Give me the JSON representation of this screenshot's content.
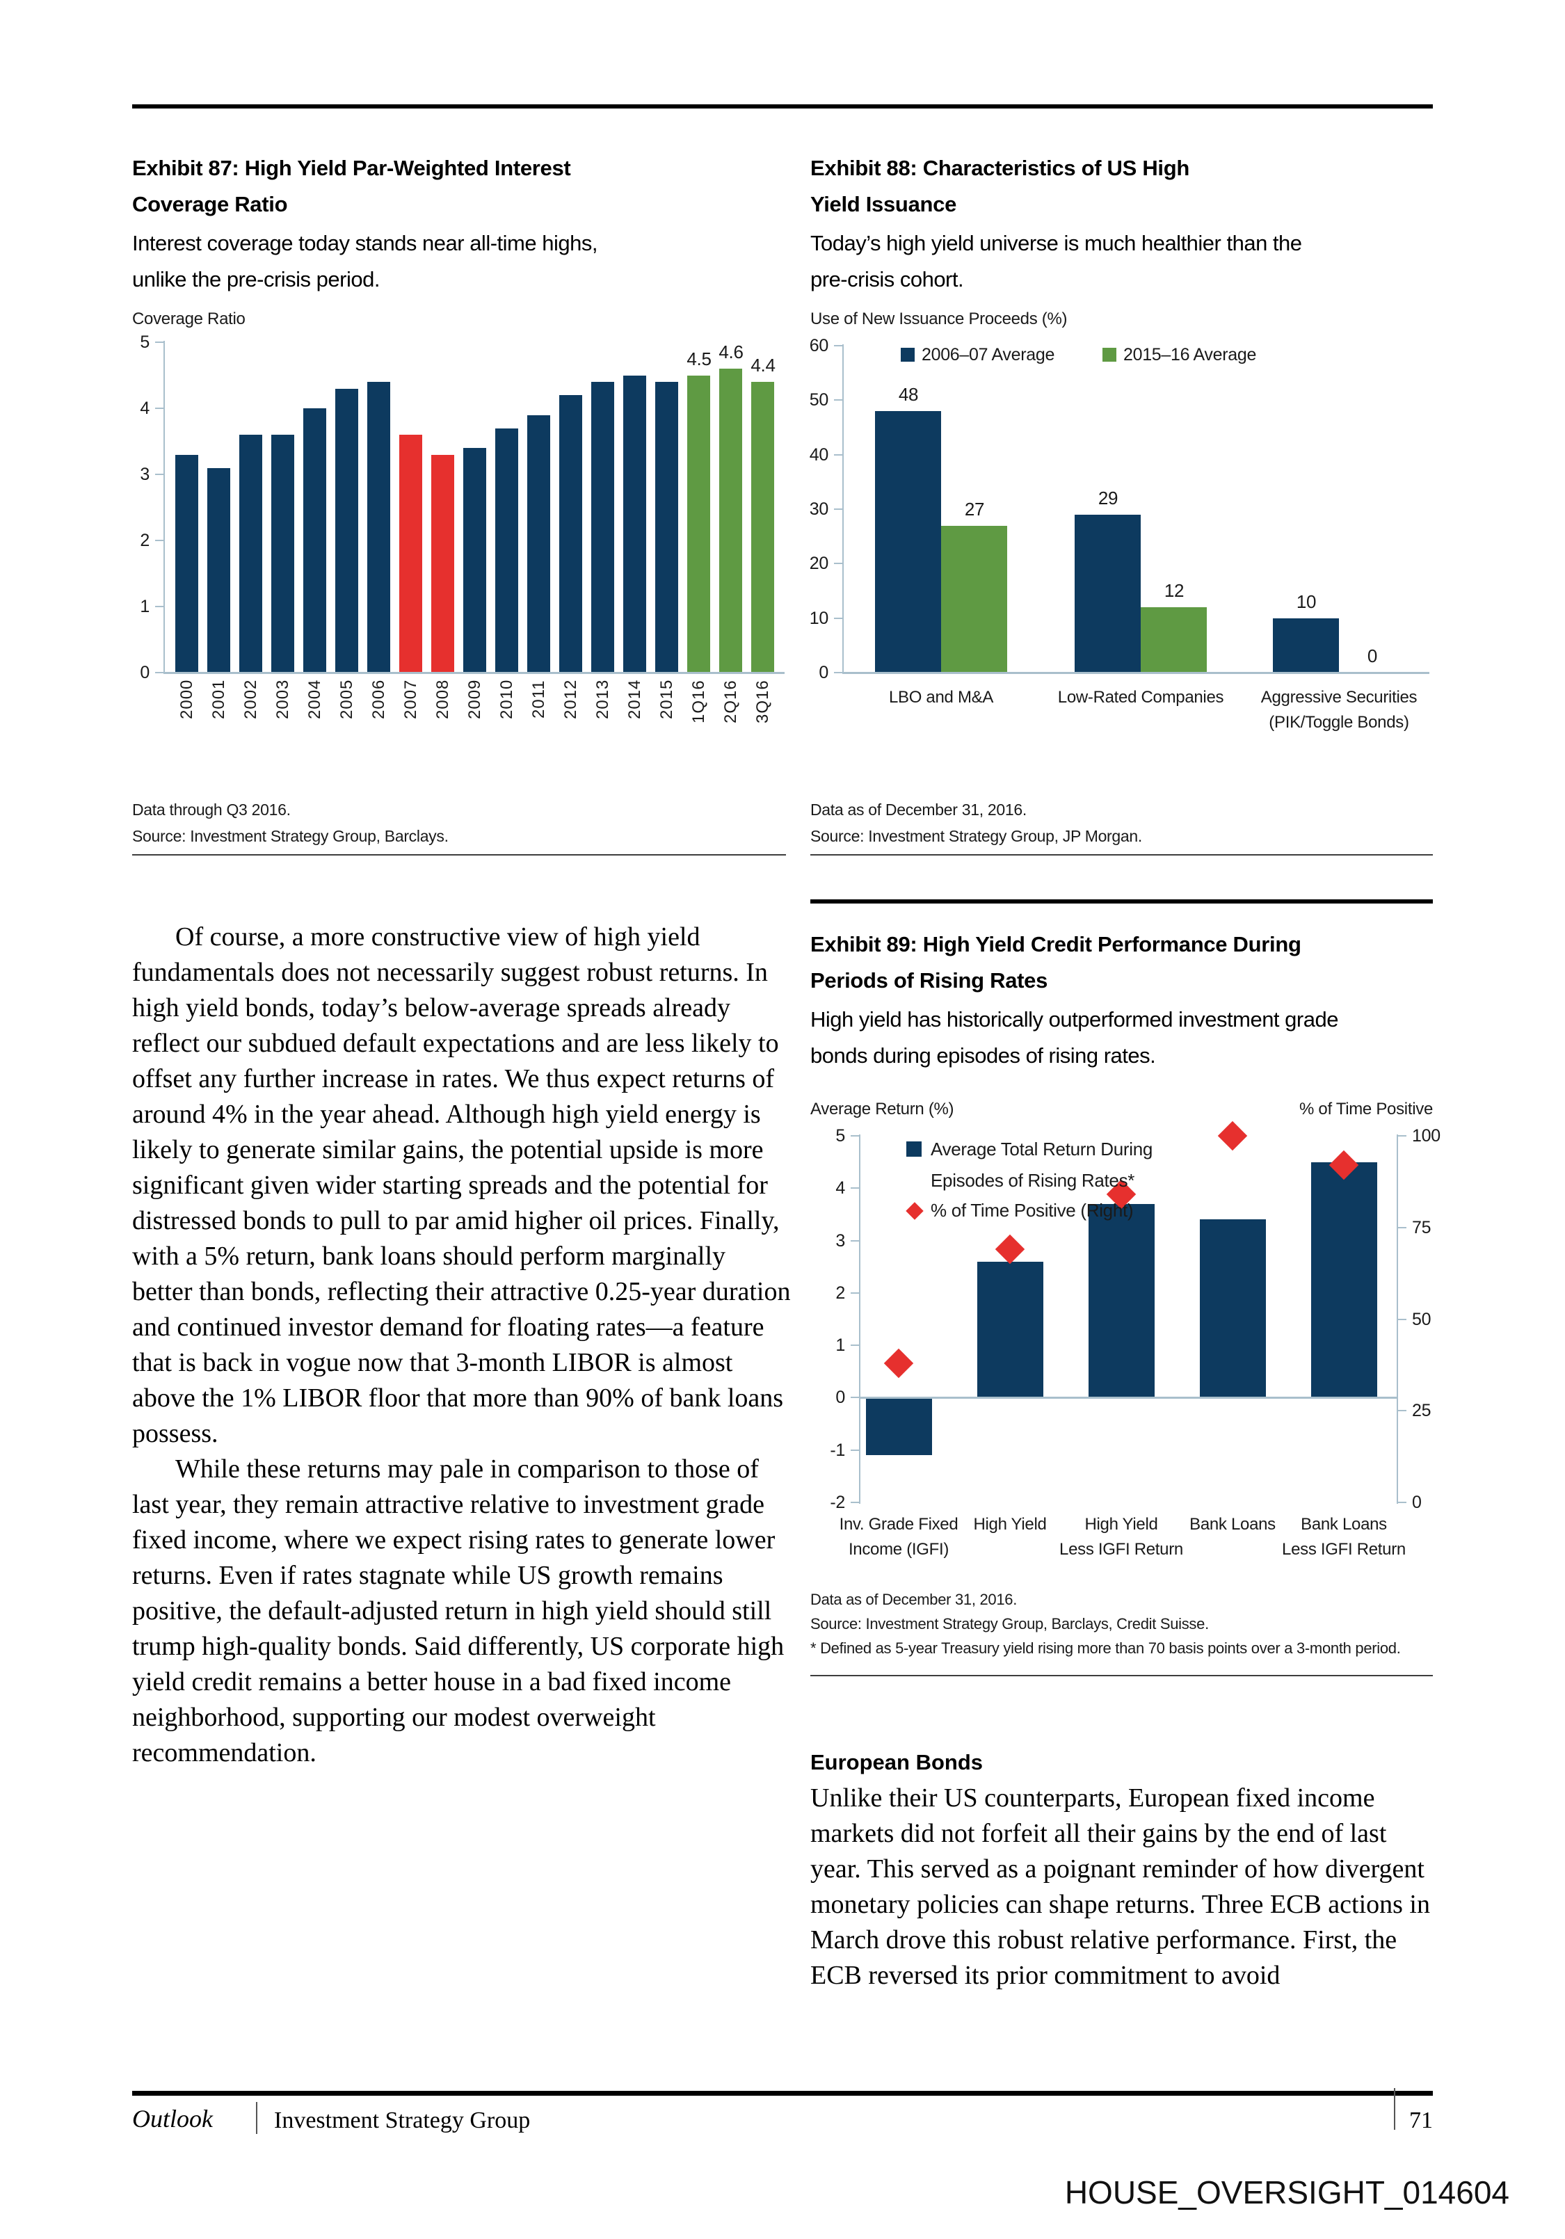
{
  "colors": {
    "navy": "#0D3A5F",
    "green": "#5F9A43",
    "red": "#E6302E",
    "axis": "#A9BFCC",
    "rule_thin": "#3d3d3d"
  },
  "exhibit87": {
    "title_lines": [
      "Exhibit 87: High Yield Par-Weighted Interest",
      "Coverage Ratio"
    ],
    "subtitle_lines": [
      "Interest coverage today stands near all-time highs,",
      "unlike the pre-crisis period."
    ],
    "footnote_lines": [
      "Data through Q3 2016.",
      "Source: Investment Strategy Group, Barclays."
    ],
    "chart_data": {
      "type": "bar",
      "ylabel": "Coverage Ratio",
      "ylim": [
        0,
        5
      ],
      "yticks": [
        5,
        4,
        3,
        2,
        1,
        0
      ],
      "categories": [
        "2000",
        "2001",
        "2002",
        "2003",
        "2004",
        "2005",
        "2006",
        "2007",
        "2008",
        "2009",
        "2010",
        "2011",
        "2012",
        "2013",
        "2014",
        "2015",
        "1Q16",
        "2Q16",
        "3Q16"
      ],
      "values": [
        3.3,
        3.1,
        3.6,
        3.6,
        4.0,
        4.3,
        4.4,
        3.6,
        3.3,
        3.4,
        3.7,
        3.9,
        4.2,
        4.4,
        4.5,
        4.4,
        4.5,
        4.6,
        4.4
      ],
      "bar_colors": [
        "navy",
        "navy",
        "navy",
        "navy",
        "navy",
        "navy",
        "navy",
        "red",
        "red",
        "navy",
        "navy",
        "navy",
        "navy",
        "navy",
        "navy",
        "navy",
        "green",
        "green",
        "green"
      ],
      "value_labels": [
        "",
        "",
        "",
        "",
        "",
        "",
        "",
        "",
        "",
        "",
        "",
        "",
        "",
        "",
        "",
        "",
        "4.5",
        "4.6",
        "4.4"
      ]
    }
  },
  "exhibit88": {
    "title_lines": [
      "Exhibit 88: Characteristics of US High",
      "Yield Issuance"
    ],
    "subtitle_lines": [
      "Today’s high yield universe is much healthier than the",
      "pre-crisis cohort."
    ],
    "footnote_lines": [
      "Data as of December 31, 2016.",
      "Source: Investment Strategy Group, JP Morgan."
    ],
    "chart_data": {
      "type": "bar",
      "ylabel": "Use of New Issuance Proceeds (%)",
      "ylim": [
        0,
        60
      ],
      "yticks": [
        60,
        50,
        40,
        30,
        20,
        10,
        0
      ],
      "categories_lines": [
        [
          "LBO and M&A"
        ],
        [
          "Low-Rated Companies"
        ],
        [
          "Aggressive Securities",
          "(PIK/Toggle Bonds)"
        ]
      ],
      "series": [
        {
          "name": "2006–07 Average",
          "color": "navy",
          "values": [
            48,
            29,
            10
          ]
        },
        {
          "name": "2015–16 Average",
          "color": "green",
          "values": [
            27,
            12,
            0
          ]
        }
      ],
      "legend_position": "top"
    }
  },
  "body": {
    "paragraph1": "Of course, a more constructive view of high yield fundamentals does not necessarily suggest robust returns. In high yield bonds, today’s below-average spreads already reflect our subdued default expectations and are less likely to offset any further increase in rates. We thus expect returns of around 4% in the year ahead. Although high yield energy is likely to generate similar gains, the potential upside is more significant given wider starting spreads and the potential for distressed bonds to pull to par amid higher oil prices. Finally, with a 5% return, bank loans should perform marginally better than bonds, reflecting their attractive 0.25-year duration and continued investor demand for floating rates—a feature that is back in vogue now that 3-month LIBOR is almost above the 1% LIBOR floor that more than 90% of bank loans possess.",
    "paragraph2": "While these returns may pale in comparison to those of last year, they remain attractive relative to investment grade fixed income, where we expect rising rates to generate lower returns. Even if rates stagnate while US growth remains positive, the default-adjusted return in high yield should still trump high-quality bonds. Said differently, US corporate high yield credit remains a better house in a bad fixed income neighborhood, supporting our modest overweight recommendation."
  },
  "exhibit89": {
    "title_lines": [
      "Exhibit 89: High Yield Credit Performance During",
      "Periods of Rising Rates"
    ],
    "subtitle_lines": [
      "High yield has historically outperformed investment grade",
      "bonds during episodes of rising rates."
    ],
    "footnote_lines": [
      "Data as of December 31, 2016.",
      "Source: Investment Strategy Group, Barclays, Credit Suisse.",
      "* Defined as 5-year Treasury yield rising more than 70 basis points over a 3-month period."
    ],
    "chart_data": {
      "type": "bar+scatter dual-axis",
      "left_axis": {
        "label": "Average Return (%)",
        "lim": [
          -2,
          5
        ],
        "ticks": [
          5,
          4,
          3,
          2,
          1,
          0,
          -1,
          -2
        ]
      },
      "right_axis": {
        "label": "% of Time Positive",
        "lim": [
          0,
          100
        ],
        "ticks": [
          100,
          75,
          50,
          25,
          0
        ]
      },
      "legend": [
        {
          "marker": "square",
          "color": "navy",
          "label_lines": [
            "Average Total Return During",
            "Episodes of Rising Rates*"
          ]
        },
        {
          "marker": "diamond",
          "color": "red",
          "label_lines": [
            "% of Time Positive (Right)"
          ]
        }
      ],
      "categories_lines": [
        [
          "Inv. Grade Fixed",
          "Income (IGFI)"
        ],
        [
          "High Yield"
        ],
        [
          "High Yield",
          "Less IGFI Return"
        ],
        [
          "Bank Loans"
        ],
        [
          "Bank Loans",
          "Less IGFI Return"
        ]
      ],
      "bars": {
        "name": "Average Total Return During Episodes of Rising Rates*",
        "values": [
          -1.1,
          2.6,
          3.7,
          3.4,
          4.5
        ]
      },
      "diamonds": {
        "name": "% of Time Positive (Right)",
        "values": [
          38,
          69,
          84,
          100,
          92
        ]
      }
    }
  },
  "european_bonds": {
    "heading": "European Bonds",
    "paragraph": "Unlike their US counterparts, European fixed income markets did not forfeit all their gains by the end of last year. This served as a poignant reminder of how divergent monetary policies can shape returns. Three ECB actions in March drove this robust relative performance. First, the ECB reversed its prior commitment to avoid"
  },
  "footer": {
    "journal": "Outlook",
    "group": "Investment Strategy Group",
    "page_number": "71"
  },
  "stamp": "HOUSE_OVERSIGHT_014604"
}
